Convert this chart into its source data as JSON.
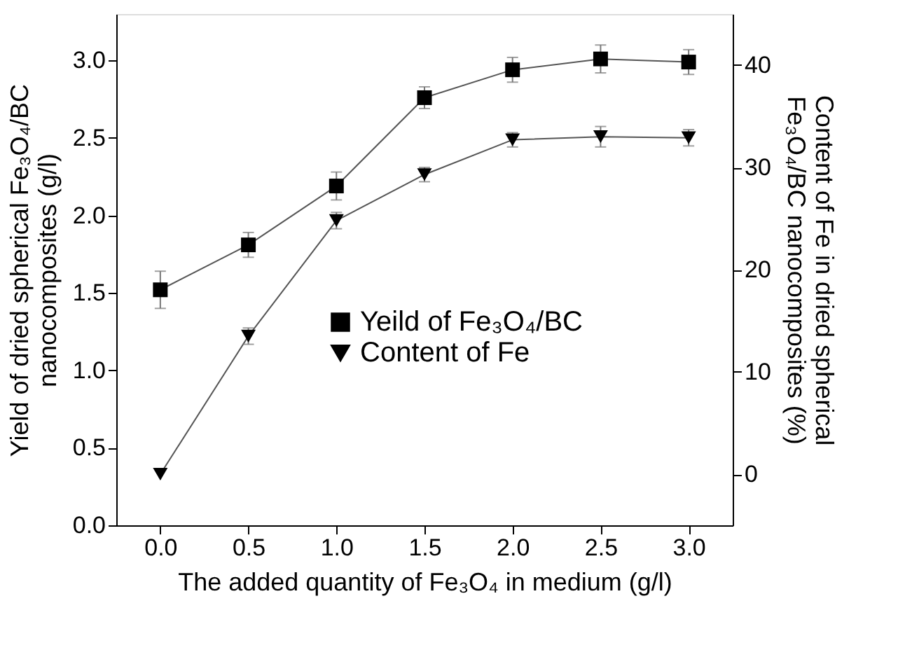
{
  "chart_data": {
    "type": "line",
    "xlabel": "The added quantity of Fe₃O₄ in medium (g/l)",
    "ylabel": "Yield of dried spherical Fe₃O₄/BC\nnanocomposites (g/l)",
    "y2label": "Content of Fe in dried spherical\nFe₃O₄/BC nanocomposites  (%)",
    "x": [
      0.0,
      0.5,
      1.0,
      1.5,
      2.0,
      2.5,
      3.0
    ],
    "xlim": [
      -0.25,
      3.25
    ],
    "xticks": [
      {
        "value": 0,
        "label": "0.0"
      },
      0.5,
      {
        "value": 1,
        "label": "1.0"
      },
      1.5,
      {
        "value": 2,
        "label": "2.0"
      },
      2.5,
      {
        "value": 3,
        "label": "3.0"
      }
    ],
    "ylim": [
      0,
      3.3
    ],
    "yticks": [
      {
        "value": 0,
        "label": "0.0"
      },
      0.5,
      {
        "value": 1,
        "label": "1.0"
      },
      1.5,
      {
        "value": 2,
        "label": "2.0"
      },
      2.5,
      {
        "value": 3,
        "label": "3.0"
      }
    ],
    "y2lim": [
      -5,
      45
    ],
    "y2ticks": [
      0,
      10,
      20,
      30,
      40
    ],
    "series": [
      {
        "name": "Yeild of Fe₃O₄/BC",
        "color": "#000000",
        "marker": "square",
        "values": [
          1.52,
          1.81,
          2.19,
          2.76,
          2.94,
          3.01,
          2.99
        ],
        "errors": [
          0.12,
          0.08,
          0.09,
          0.07,
          0.08,
          0.09,
          0.08
        ]
      },
      {
        "name": "Content of Fe",
        "color": "#000000",
        "marker": "triangle",
        "axis": "y2",
        "values": [
          0.0,
          13.5,
          24.8,
          29.3,
          32.7,
          33.0,
          32.9
        ],
        "errors": [
          null,
          0.8,
          0.8,
          0.7,
          0.7,
          1.0,
          0.8
        ]
      }
    ],
    "grid": false,
    "legend": "center",
    "line_style": "solid"
  }
}
